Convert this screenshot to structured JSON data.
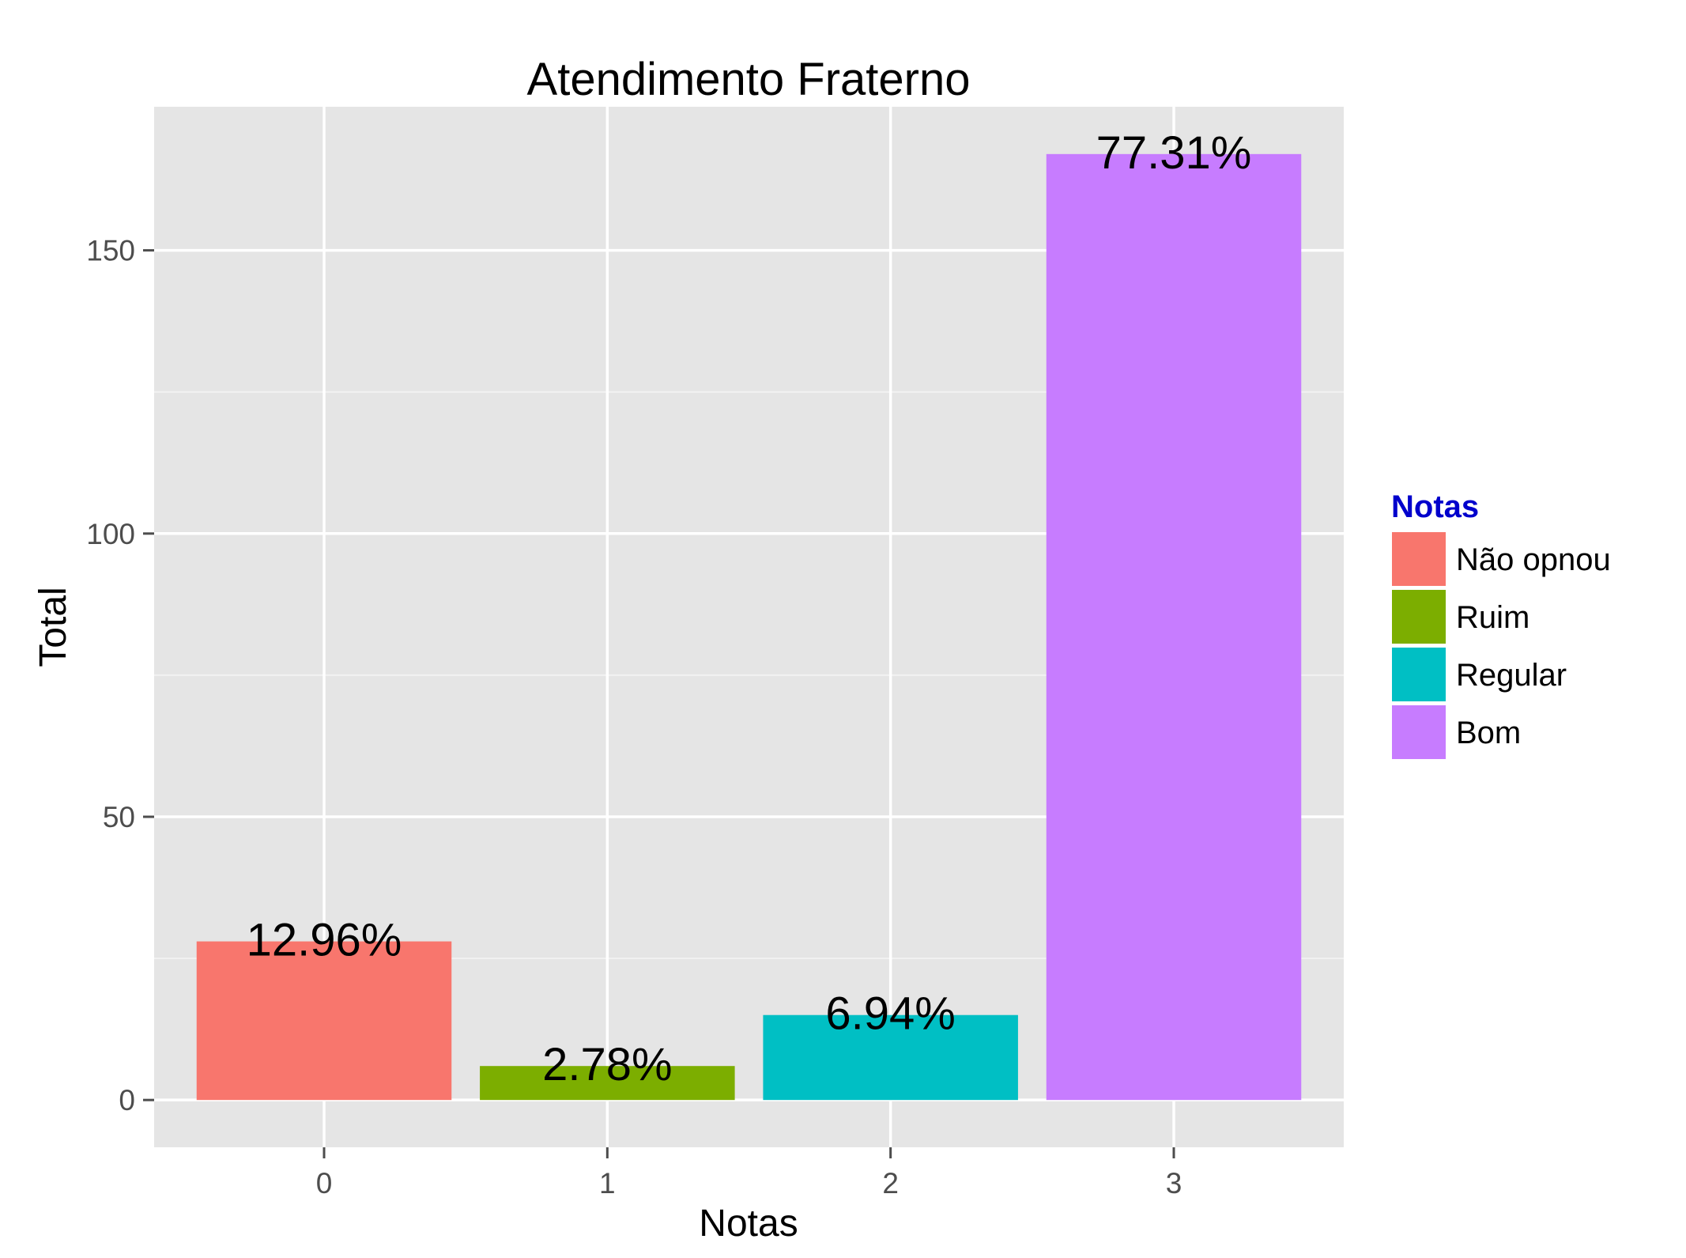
{
  "chart_data": {
    "type": "bar",
    "title": "Atendimento Fraterno",
    "xlabel": "Notas",
    "ylabel": "Total",
    "categories": [
      "0",
      "1",
      "2",
      "3"
    ],
    "values": [
      28,
      6,
      15,
      167
    ],
    "labels": [
      "12.96%",
      "2.78%",
      "6.94%",
      "77.31%"
    ],
    "colors": [
      "#F8766D",
      "#7CAE00",
      "#00BFC4",
      "#C77CFF"
    ],
    "yticks": [
      0,
      50,
      100,
      150
    ],
    "ylim": [
      -8.35,
      175.35
    ],
    "grid": true,
    "legend": {
      "title": "Notas",
      "title_color": "#0000CC",
      "position": "right",
      "items": [
        {
          "label": "Não opnou",
          "color": "#F8766D"
        },
        {
          "label": "Ruim",
          "color": "#7CAE00"
        },
        {
          "label": "Regular",
          "color": "#00BFC4"
        },
        {
          "label": "Bom",
          "color": "#C77CFF"
        }
      ]
    }
  }
}
